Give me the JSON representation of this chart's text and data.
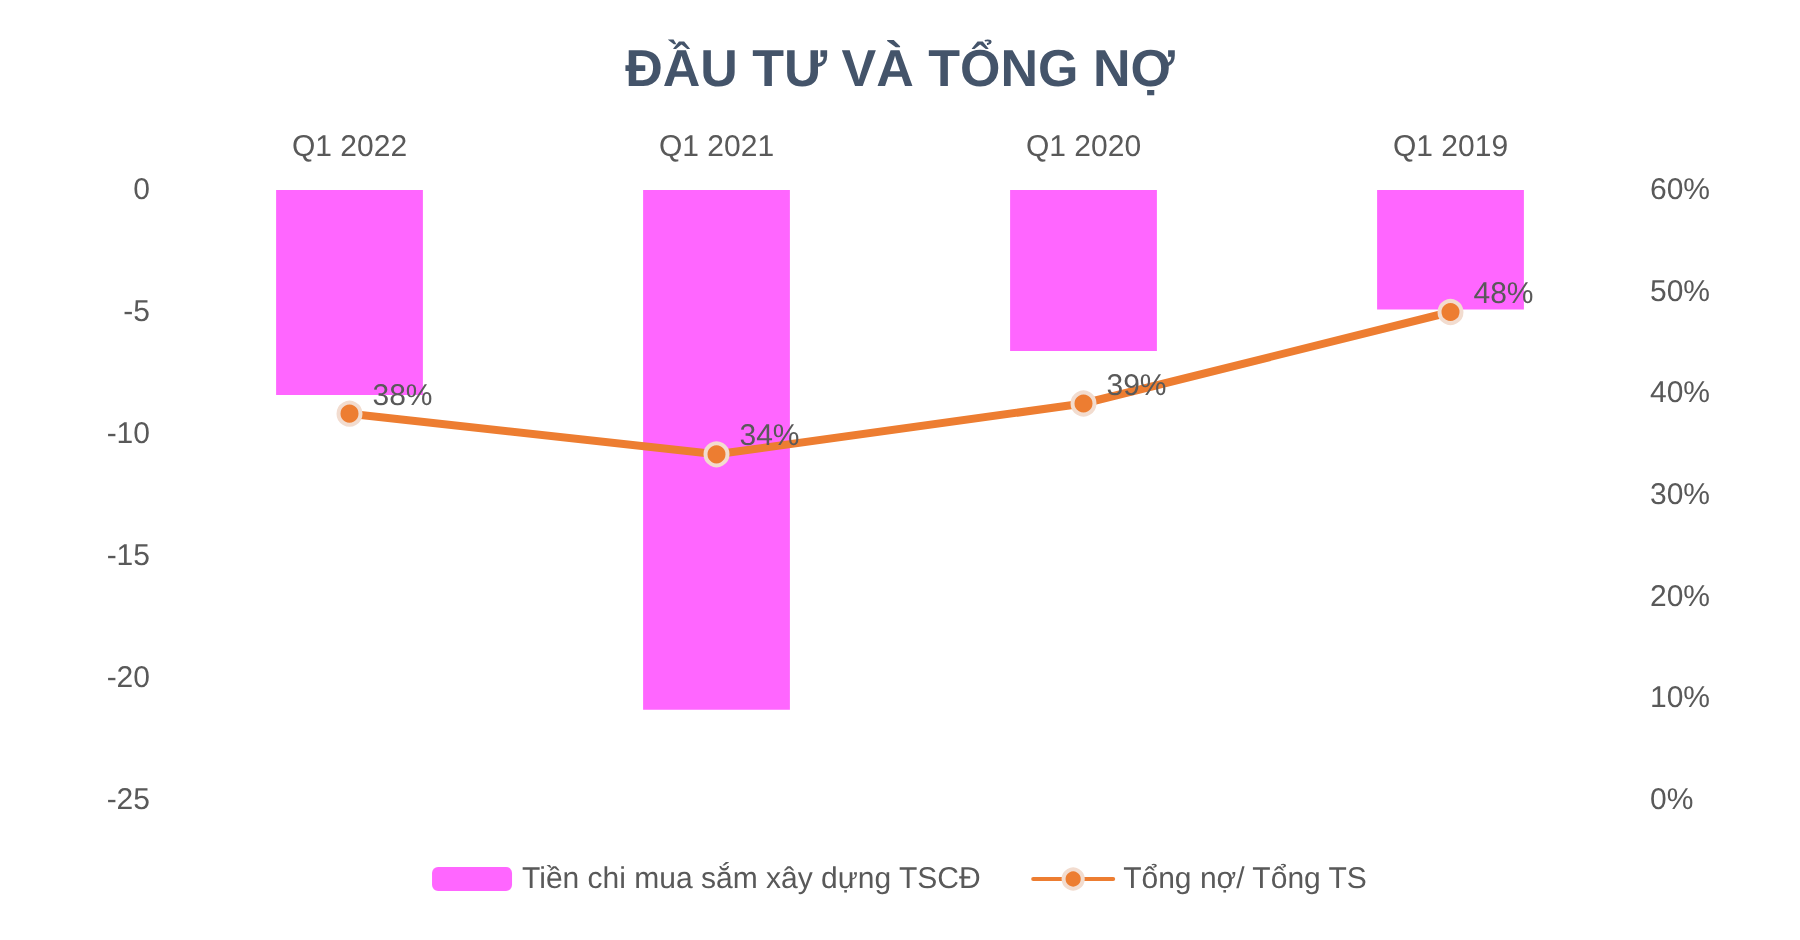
{
  "chart_data": {
    "type": "bar",
    "title": "ĐẦU TƯ VÀ TỔNG NỢ",
    "categories": [
      "Q1 2022",
      "Q1 2021",
      "Q1 2020",
      "Q1 2019"
    ],
    "series": [
      {
        "name": "Tiền chi mua sắm xây dựng TSCĐ",
        "color": "#ff66ff",
        "values": [
          -8.4,
          -21.3,
          -6.6,
          -4.9
        ]
      },
      {
        "name": "Tổng nợ/ Tổng TS",
        "type": "line",
        "axis": "y2",
        "color": "#ed7d31",
        "values": [
          38,
          34,
          39,
          48
        ],
        "value_labels": [
          "38%",
          "34%",
          "39%",
          "48%"
        ],
        "marker": "circle"
      }
    ],
    "ylim": [
      -25,
      0
    ],
    "yticks": [
      -25,
      -20,
      -15,
      -10,
      -5,
      0
    ],
    "y2lim": [
      0,
      60
    ],
    "y2ticks": [
      {
        "value": 0,
        "label": "0%"
      },
      {
        "value": 10,
        "label": "10%"
      },
      {
        "value": 20,
        "label": "20%"
      },
      {
        "value": 30,
        "label": "30%"
      },
      {
        "value": 40,
        "label": "40%"
      },
      {
        "value": 50,
        "label": "50%"
      },
      {
        "value": 60,
        "label": "60%"
      }
    ],
    "grid": false,
    "legend": "bottom"
  }
}
